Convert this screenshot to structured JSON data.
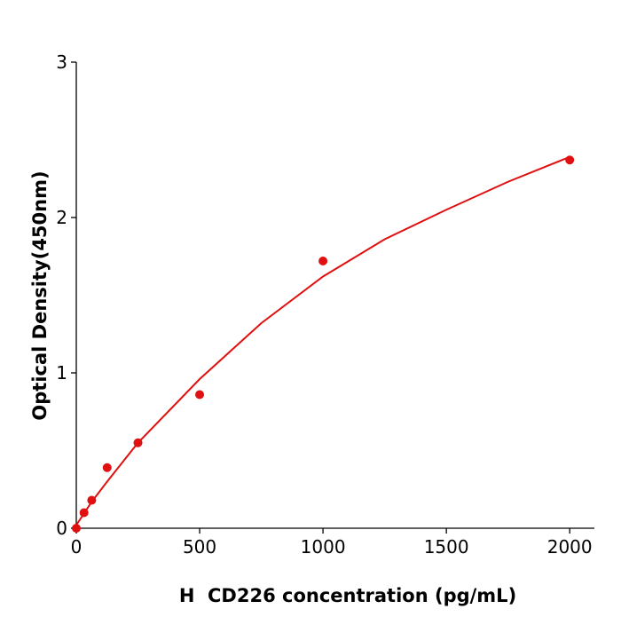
{
  "chart_data": {
    "type": "scatter",
    "x_label": "H  CD226 concentration (pg/mL)",
    "y_label": "Optical Density(450nm)",
    "x": [
      0,
      31.25,
      62.5,
      125,
      250,
      500,
      1000,
      2000
    ],
    "values": [
      0,
      0.1,
      0.18,
      0.39,
      0.55,
      0.86,
      1.72,
      2.37
    ],
    "color": "#e01010",
    "fit": {
      "x": [
        0,
        62.5,
        125,
        250,
        500,
        750,
        1000,
        1250,
        1500,
        1750,
        2000
      ],
      "values": [
        0.02,
        0.17,
        0.3,
        0.55,
        0.96,
        1.32,
        1.62,
        1.86,
        2.05,
        2.23,
        2.39
      ]
    },
    "xlim": [
      0,
      2100
    ],
    "ylim": [
      0,
      3
    ],
    "xticks": [
      0,
      500,
      1000,
      1500,
      2000
    ],
    "yticks": [
      0,
      1,
      2,
      3
    ],
    "grid": false
  }
}
